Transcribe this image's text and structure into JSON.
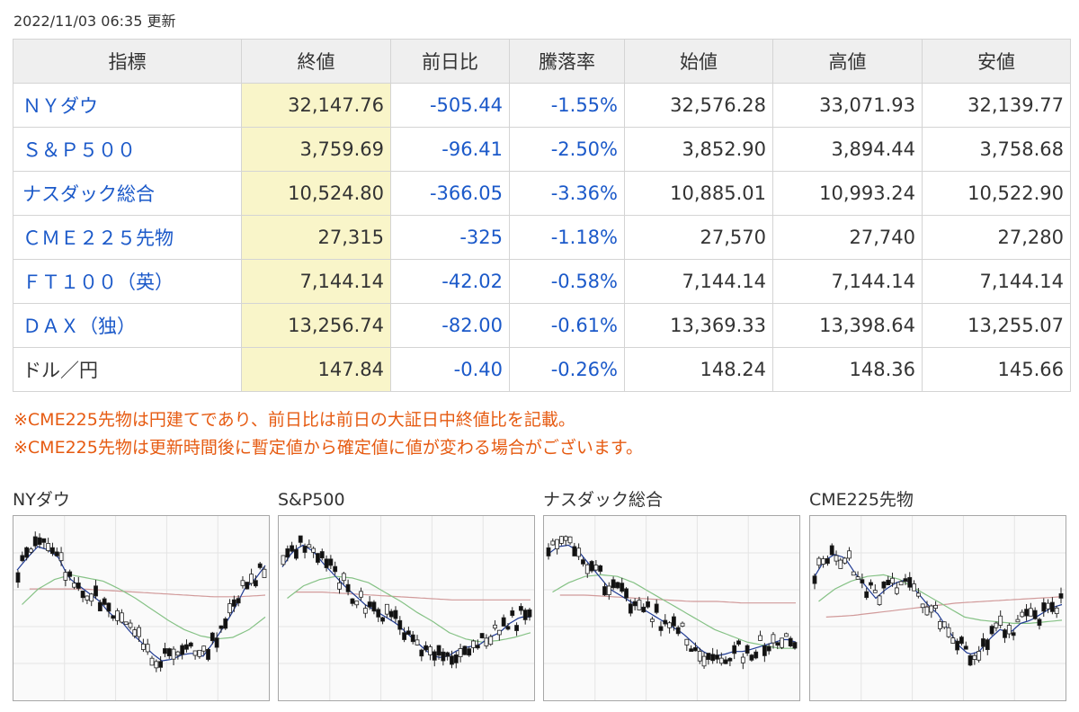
{
  "update_time": "2022/11/03 06:35 更新",
  "table": {
    "headers": [
      "指標",
      "終値",
      "前日比",
      "騰落率",
      "始値",
      "高値",
      "安値"
    ],
    "rows": [
      {
        "name": "ＮＹダウ",
        "link": true,
        "close": "32,147.76",
        "change": "-505.44",
        "pct": "-1.55%",
        "open": "32,576.28",
        "high": "33,071.93",
        "low": "32,139.77"
      },
      {
        "name": "Ｓ＆Ｐ５００",
        "link": true,
        "close": "3,759.69",
        "change": "-96.41",
        "pct": "-2.50%",
        "open": "3,852.90",
        "high": "3,894.44",
        "low": "3,758.68"
      },
      {
        "name": "ナスダック総合",
        "link": true,
        "close": "10,524.80",
        "change": "-366.05",
        "pct": "-3.36%",
        "open": "10,885.01",
        "high": "10,993.24",
        "low": "10,522.90"
      },
      {
        "name": "ＣＭＥ２２５先物",
        "link": true,
        "close": "27,315",
        "change": "-325",
        "pct": "-1.18%",
        "open": "27,570",
        "high": "27,740",
        "low": "27,280"
      },
      {
        "name": "ＦＴ１００（英）",
        "link": true,
        "close": "7,144.14",
        "change": "-42.02",
        "pct": "-0.58%",
        "open": "7,144.14",
        "high": "7,144.14",
        "low": "7,144.14"
      },
      {
        "name": "ＤＡＸ（独）",
        "link": true,
        "close": "13,256.74",
        "change": "-82.00",
        "pct": "-0.61%",
        "open": "13,369.33",
        "high": "13,398.64",
        "low": "13,255.07"
      },
      {
        "name": "ドル／円",
        "link": false,
        "close": "147.84",
        "change": "-0.40",
        "pct": "-0.26%",
        "open": "148.24",
        "high": "148.36",
        "low": "145.66"
      }
    ]
  },
  "notes": [
    "※CME225先物は円建てであり、前日比は前日の大証日中終値比を記載。",
    "※CME225先物は更新時間後に暫定値から確定値に値が変わる場合がございます。"
  ],
  "colors": {
    "link": "#1b59c9",
    "note": "#e65b12",
    "close_highlight": "#f9f5c9",
    "line_short": "#1f3a93",
    "line_mid": "#86c286",
    "line_long": "#d19a9a",
    "candle_up": "#ffffff",
    "candle_down": "#111111"
  },
  "charts": [
    {
      "title": "NYダウ",
      "trend": [
        0.3,
        0.22,
        0.15,
        0.17,
        0.22,
        0.35,
        0.4,
        0.45,
        0.5,
        0.58,
        0.62,
        0.7,
        0.76,
        0.83,
        0.88,
        0.87,
        0.84,
        0.83,
        0.85,
        0.76,
        0.66,
        0.55,
        0.42,
        0.36,
        0.27
      ],
      "mid": [
        0.52,
        0.42,
        0.36,
        0.33,
        0.35,
        0.37,
        0.42,
        0.48,
        0.55,
        0.62,
        0.68,
        0.72,
        0.74,
        0.73,
        0.68,
        0.6
      ],
      "long": [
        0.42,
        0.42,
        0.42,
        0.43,
        0.44,
        0.45,
        0.46,
        0.47,
        0.47,
        0.46
      ]
    },
    {
      "title": "S&P500",
      "trend": [
        0.28,
        0.18,
        0.14,
        0.18,
        0.26,
        0.33,
        0.4,
        0.46,
        0.52,
        0.56,
        0.6,
        0.64,
        0.7,
        0.76,
        0.82,
        0.86,
        0.85,
        0.81,
        0.79,
        0.78,
        0.73,
        0.7,
        0.64,
        0.6,
        0.6
      ],
      "mid": [
        0.48,
        0.4,
        0.36,
        0.34,
        0.35,
        0.38,
        0.44,
        0.5,
        0.57,
        0.63,
        0.7,
        0.74,
        0.76,
        0.75,
        0.73,
        0.7
      ],
      "long": [
        0.44,
        0.44,
        0.45,
        0.46,
        0.47,
        0.48,
        0.49,
        0.49,
        0.49,
        0.49
      ]
    },
    {
      "title": "ナスダック総合",
      "trend": [
        0.2,
        0.15,
        0.14,
        0.18,
        0.26,
        0.34,
        0.42,
        0.46,
        0.5,
        0.54,
        0.58,
        0.62,
        0.66,
        0.7,
        0.76,
        0.82,
        0.85,
        0.84,
        0.82,
        0.82,
        0.8,
        0.78,
        0.76,
        0.74,
        0.76
      ],
      "mid": [
        0.44,
        0.38,
        0.34,
        0.33,
        0.34,
        0.38,
        0.44,
        0.5,
        0.56,
        0.62,
        0.68,
        0.72,
        0.76,
        0.78,
        0.8,
        0.8
      ],
      "long": [
        0.46,
        0.46,
        0.47,
        0.48,
        0.49,
        0.5,
        0.5,
        0.51,
        0.51,
        0.51
      ]
    },
    {
      "title": "CME225先物",
      "trend": [
        0.35,
        0.24,
        0.2,
        0.22,
        0.32,
        0.4,
        0.48,
        0.42,
        0.38,
        0.36,
        0.44,
        0.52,
        0.58,
        0.68,
        0.78,
        0.84,
        0.82,
        0.74,
        0.68,
        0.7,
        0.64,
        0.62,
        0.58,
        0.54,
        0.52
      ],
      "mid": [
        0.5,
        0.42,
        0.37,
        0.34,
        0.33,
        0.36,
        0.42,
        0.48,
        0.54,
        0.6,
        0.62,
        0.63,
        0.64,
        0.64,
        0.63,
        0.62
      ],
      "long": [
        0.6,
        0.59,
        0.57,
        0.55,
        0.53,
        0.51,
        0.5,
        0.49,
        0.48,
        0.47
      ]
    }
  ]
}
